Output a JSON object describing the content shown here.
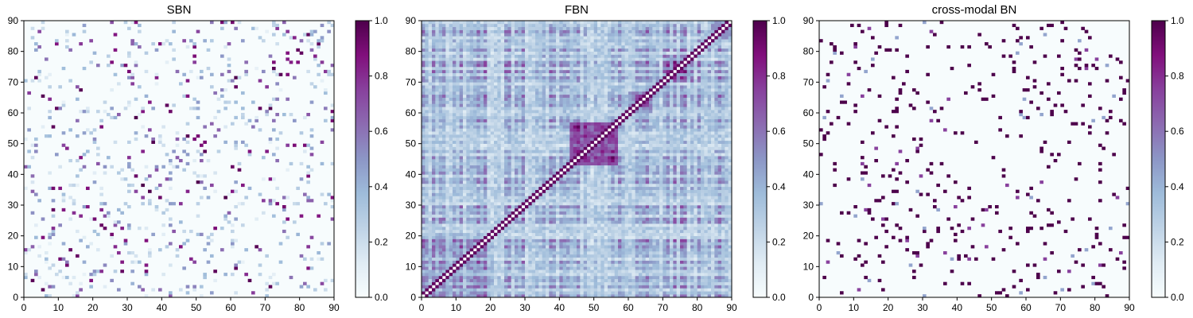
{
  "chart_data": [
    {
      "type": "heatmap",
      "title": "SBN",
      "xlabel": "",
      "ylabel": "",
      "xlim": [
        0,
        90
      ],
      "ylim": [
        0,
        90
      ],
      "x_ticks": [
        "0",
        "10",
        "20",
        "30",
        "40",
        "50",
        "60",
        "70",
        "80",
        "90"
      ],
      "y_ticks": [
        "0",
        "10",
        "20",
        "30",
        "40",
        "50",
        "60",
        "70",
        "80",
        "90"
      ],
      "grid": false,
      "matrix_size": 90,
      "colormap": "BuPu",
      "colorbar": {
        "range": [
          0,
          1
        ],
        "ticks": [
          "0.0",
          "0.2",
          "0.4",
          "0.6",
          "0.8",
          "1.0"
        ]
      },
      "pattern": "sparse-symmetric structural connectivity"
    },
    {
      "type": "heatmap",
      "title": "FBN",
      "xlabel": "",
      "ylabel": "",
      "xlim": [
        0,
        90
      ],
      "ylim": [
        0,
        90
      ],
      "x_ticks": [
        "0",
        "10",
        "20",
        "30",
        "40",
        "50",
        "60",
        "70",
        "80",
        "90"
      ],
      "y_ticks": [
        "0",
        "10",
        "20",
        "30",
        "40",
        "50",
        "60",
        "70",
        "80",
        "90"
      ],
      "grid": false,
      "matrix_size": 90,
      "colormap": "BuPu",
      "colorbar": {
        "range": [
          0,
          1
        ],
        "ticks": [
          "0.0",
          "0.2",
          "0.4",
          "0.6",
          "0.8",
          "1.0"
        ]
      },
      "pattern": "dense-symmetric functional connectivity with strong diagonal and block 43-56"
    },
    {
      "type": "heatmap",
      "title": "cross-modal BN",
      "xlabel": "",
      "ylabel": "",
      "xlim": [
        0,
        90
      ],
      "ylim": [
        0,
        90
      ],
      "x_ticks": [
        "0",
        "10",
        "20",
        "30",
        "40",
        "50",
        "60",
        "70",
        "80",
        "90"
      ],
      "y_ticks": [
        "0",
        "10",
        "20",
        "30",
        "40",
        "50",
        "60",
        "70",
        "80",
        "90"
      ],
      "grid": false,
      "matrix_size": 90,
      "colormap": "BuPu",
      "colorbar": {
        "range": [
          0,
          1
        ],
        "ticks": [
          "0.0",
          "0.2",
          "0.4",
          "0.6",
          "0.8",
          "1.0"
        ]
      },
      "pattern": "sparse-symmetric near-binary connectivity"
    }
  ]
}
